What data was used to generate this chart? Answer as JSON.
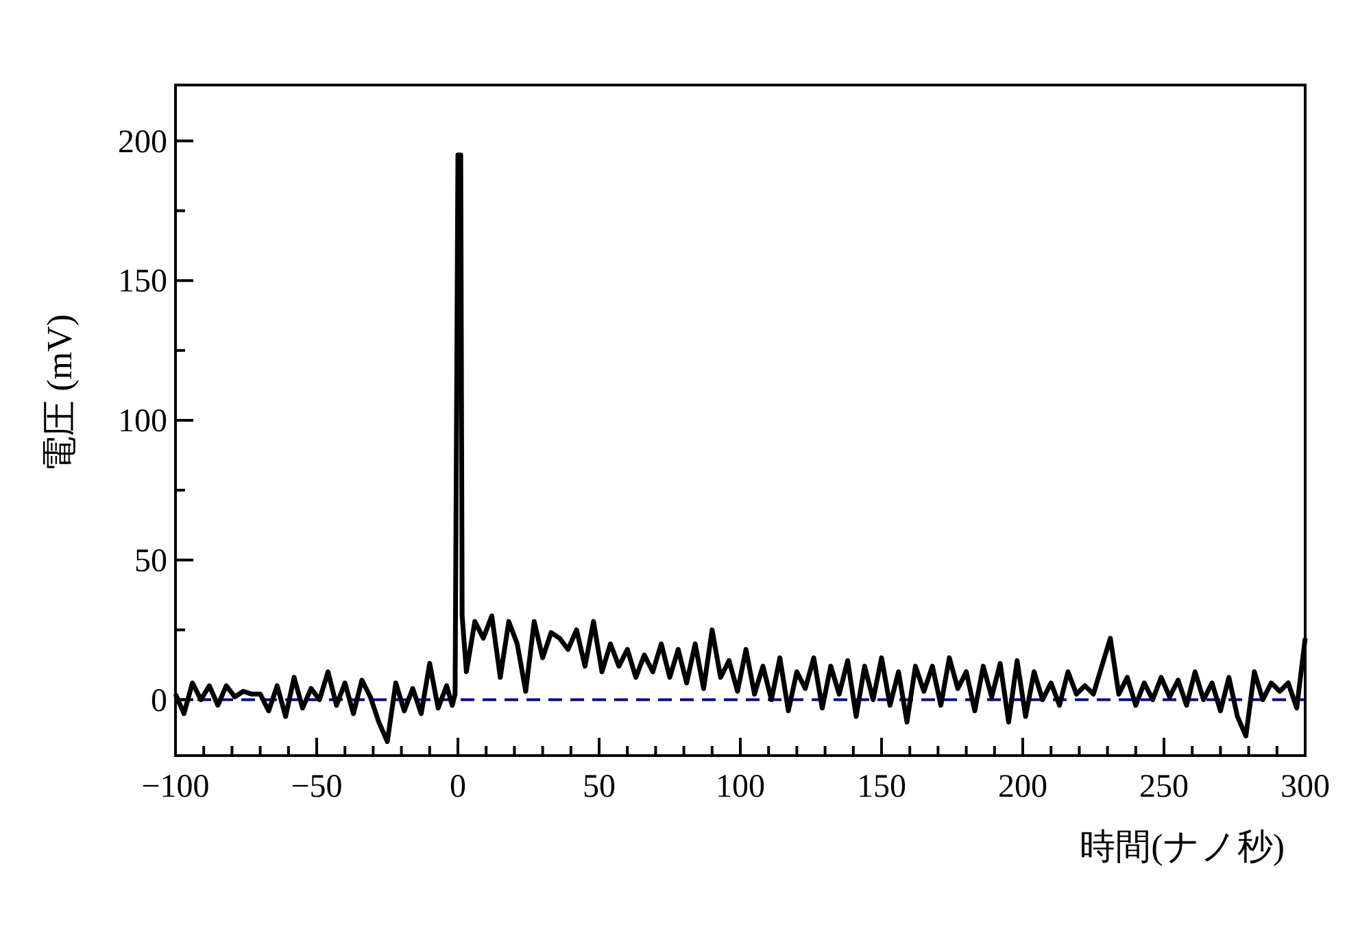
{
  "chart_data": {
    "type": "line",
    "xlabel": "時間(ナノ秒)",
    "ylabel": "電圧 (mV)",
    "xlim": [
      -100,
      300
    ],
    "ylim": [
      -20,
      220
    ],
    "xticks": [
      -100,
      {
        "value": -90,
        "label": null
      },
      {
        "value": -80,
        "label": null
      },
      {
        "value": -70,
        "label": null
      },
      {
        "value": -60,
        "label": null
      },
      -50,
      {
        "value": -40,
        "label": null
      },
      {
        "value": -30,
        "label": null
      },
      {
        "value": -20,
        "label": null
      },
      {
        "value": -10,
        "label": null
      },
      0,
      {
        "value": 10,
        "label": null
      },
      {
        "value": 20,
        "label": null
      },
      {
        "value": 30,
        "label": null
      },
      {
        "value": 40,
        "label": null
      },
      50,
      {
        "value": 60,
        "label": null
      },
      {
        "value": 70,
        "label": null
      },
      {
        "value": 80,
        "label": null
      },
      {
        "value": 90,
        "label": null
      },
      100,
      {
        "value": 110,
        "label": null
      },
      {
        "value": 120,
        "label": null
      },
      {
        "value": 130,
        "label": null
      },
      {
        "value": 140,
        "label": null
      },
      150,
      {
        "value": 160,
        "label": null
      },
      {
        "value": 170,
        "label": null
      },
      {
        "value": 180,
        "label": null
      },
      {
        "value": 190,
        "label": null
      },
      200,
      {
        "value": 210,
        "label": null
      },
      {
        "value": 220,
        "label": null
      },
      {
        "value": 230,
        "label": null
      },
      {
        "value": 240,
        "label": null
      },
      250,
      {
        "value": 260,
        "label": null
      },
      {
        "value": 270,
        "label": null
      },
      {
        "value": 280,
        "label": null
      },
      {
        "value": 290,
        "label": null
      },
      300
    ],
    "yticks": [
      0,
      {
        "value": 25,
        "label": null
      },
      50,
      {
        "value": 75,
        "label": null
      },
      100,
      {
        "value": 125,
        "label": null
      },
      150,
      {
        "value": 175,
        "label": null
      },
      200
    ],
    "ref_lines": [
      {
        "axis": "y",
        "value": 0,
        "color": "#00008b",
        "line_style": "dashed"
      }
    ],
    "x": [
      -100,
      -97,
      -94,
      -91,
      -88,
      -85,
      -82,
      -79,
      -76,
      -73,
      -70,
      -67,
      -64,
      -61,
      -58,
      -55,
      -52,
      -49,
      -46,
      -43,
      -40,
      -37,
      -34,
      -31,
      -28,
      -25,
      -22,
      -19,
      -16,
      -13,
      -10,
      -7,
      -4,
      -2,
      -1,
      0,
      1,
      1.5,
      3,
      6,
      9,
      12,
      15,
      18,
      21,
      24,
      27,
      30,
      33,
      36,
      39,
      42,
      45,
      48,
      51,
      54,
      57,
      60,
      63,
      66,
      69,
      72,
      75,
      78,
      81,
      84,
      87,
      90,
      93,
      96,
      99,
      102,
      105,
      108,
      111,
      114,
      117,
      120,
      123,
      126,
      129,
      132,
      135,
      138,
      141,
      144,
      147,
      150,
      153,
      156,
      159,
      162,
      165,
      168,
      171,
      174,
      177,
      180,
      183,
      186,
      189,
      192,
      195,
      198,
      201,
      204,
      207,
      210,
      213,
      216,
      219,
      222,
      225,
      228,
      231,
      234,
      237,
      240,
      243,
      246,
      249,
      252,
      255,
      258,
      261,
      264,
      267,
      270,
      273,
      276,
      279,
      282,
      285,
      288,
      291,
      294,
      297,
      300
    ],
    "series": [
      {
        "color": "#000000",
        "values": [
          2,
          -5,
          6,
          0,
          5,
          -2,
          5,
          1,
          3,
          2,
          2,
          -4,
          5,
          -6,
          8,
          -3,
          4,
          0,
          10,
          -2,
          6,
          -5,
          7,
          1,
          -8,
          -15,
          6,
          -4,
          4,
          -5,
          13,
          -3,
          5,
          -2,
          2,
          195,
          195,
          30,
          10,
          28,
          22,
          30,
          8,
          28,
          20,
          3,
          28,
          15,
          24,
          22,
          18,
          25,
          12,
          28,
          10,
          20,
          12,
          18,
          8,
          16,
          10,
          20,
          8,
          18,
          6,
          20,
          4,
          25,
          8,
          14,
          3,
          18,
          2,
          12,
          0,
          15,
          -4,
          10,
          4,
          15,
          -3,
          12,
          2,
          14,
          -6,
          12,
          0,
          15,
          -2,
          10,
          -8,
          12,
          3,
          12,
          -2,
          15,
          4,
          10,
          -4,
          12,
          1,
          13,
          -8,
          14,
          -6,
          10,
          0,
          6,
          -2,
          10,
          2,
          5,
          2,
          12,
          22,
          2,
          8,
          -2,
          6,
          0,
          8,
          1,
          7,
          -2,
          10,
          0,
          6,
          -4,
          8,
          -6,
          -13,
          10,
          0,
          6,
          3,
          6,
          -3,
          22
        ]
      }
    ]
  }
}
